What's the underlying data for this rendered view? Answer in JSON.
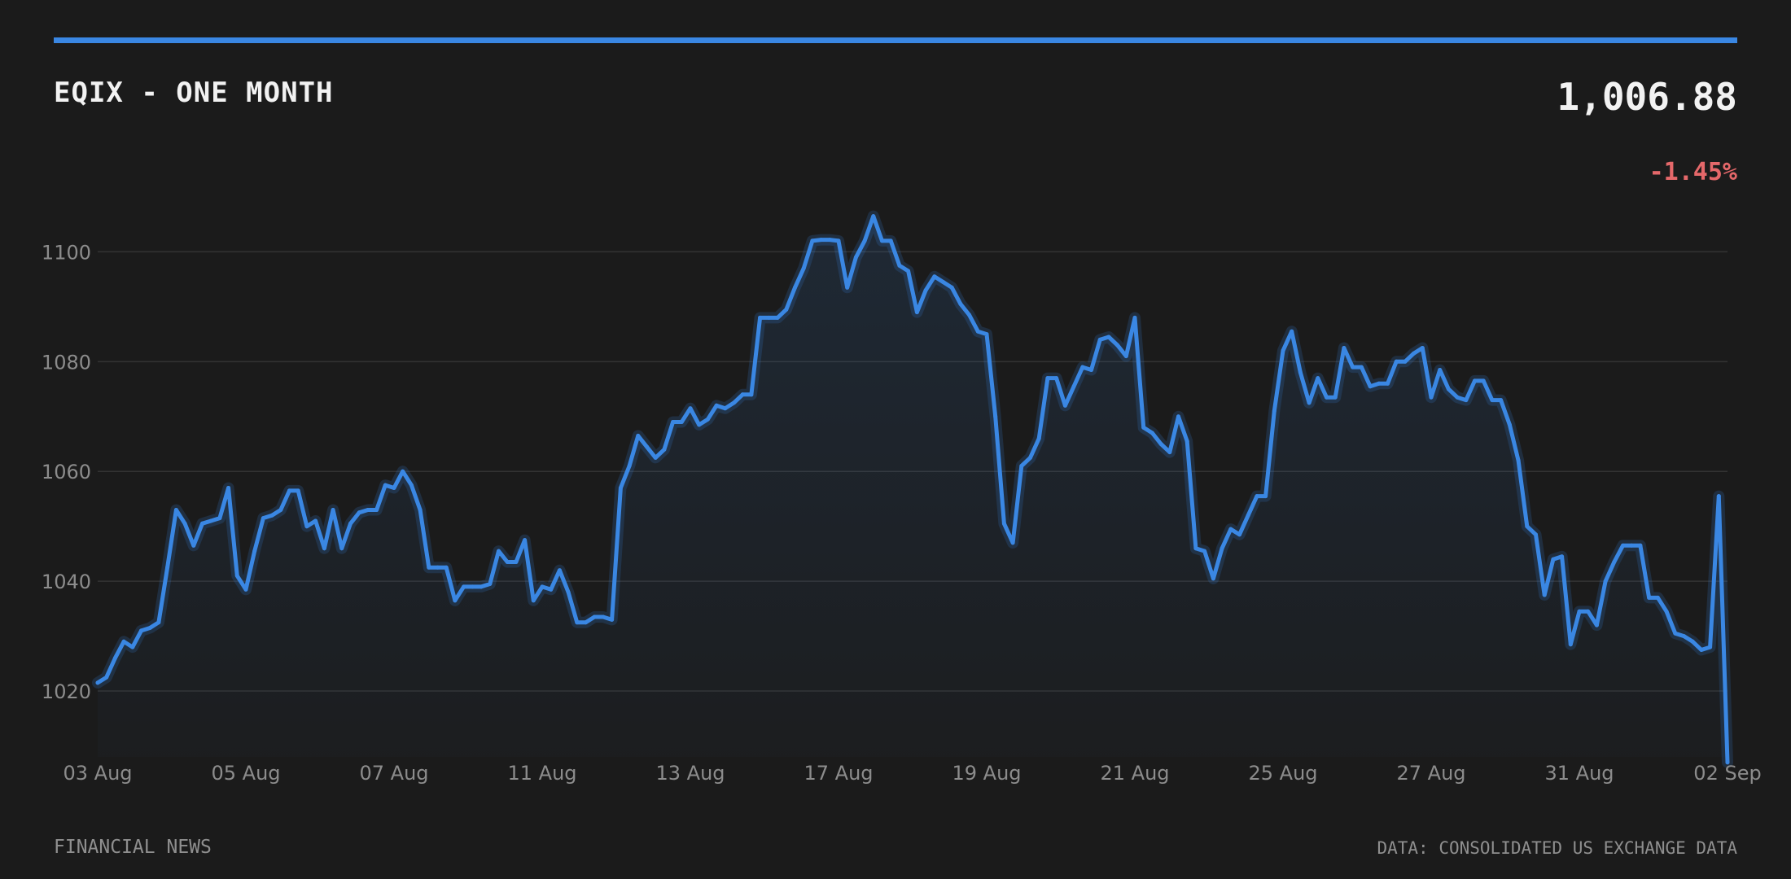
{
  "header": {
    "title": "EQIX - ONE MONTH",
    "price": "1,006.88",
    "change": "-1.45%"
  },
  "footer": {
    "left": "FINANCIAL NEWS",
    "right": "DATA: CONSOLIDATED US EXCHANGE DATA"
  },
  "colors": {
    "background": "#1b1b1b",
    "accent": "#3a87e3",
    "negative": "#e5686a",
    "muted_text": "#8f8f8f"
  },
  "chart_data": {
    "type": "area",
    "title": "EQIX - ONE MONTH",
    "xlabel": "",
    "ylabel": "",
    "ylim": [
      1008,
      1114
    ],
    "yticks": [
      1020,
      1040,
      1060,
      1080,
      1100
    ],
    "grid": true,
    "xtick_labels": [
      "03 Aug",
      "05 Aug",
      "07 Aug",
      "11 Aug",
      "13 Aug",
      "17 Aug",
      "19 Aug",
      "21 Aug",
      "25 Aug",
      "27 Aug",
      "31 Aug",
      "02 Sep"
    ],
    "series": [
      {
        "values": [
          1021.5,
          1022.5,
          1026,
          1029,
          1028,
          1031,
          1031.5,
          1032.5,
          1042.5,
          1053,
          1050.5,
          1046.5,
          1050.5,
          1051,
          1051.5,
          1057,
          1041,
          1038.5,
          1045.5,
          1051.5,
          1052,
          1053,
          1056.5,
          1056.5,
          1050,
          1051,
          1046,
          1053,
          1046,
          1050.5,
          1052.5,
          1053,
          1053,
          1057.5,
          1057,
          1060,
          1057.5,
          1053,
          1042.5,
          1042.5,
          1042.5,
          1036.5,
          1039,
          1039,
          1039,
          1039.5,
          1045.5,
          1043.5,
          1043.5,
          1047.5,
          1036.5,
          1039,
          1038.5,
          1042,
          1038,
          1032.5,
          1032.5,
          1033.5,
          1033.5,
          1033,
          1057,
          1061,
          1066.5,
          1064.5,
          1062.5,
          1064,
          1069,
          1069,
          1071.5,
          1068.5,
          1069.5,
          1072,
          1071.5,
          1072.5,
          1074,
          1074,
          1088,
          1088,
          1088,
          1089.5,
          1093.5,
          1097,
          1102,
          1102.2,
          1102.2,
          1102,
          1093.5,
          1099,
          1102,
          1106.5,
          1102,
          1102,
          1097.5,
          1096.5,
          1089,
          1093,
          1095.5,
          1094.5,
          1093.5,
          1090.5,
          1088.5,
          1085.5,
          1085,
          1070,
          1050.5,
          1047,
          1061,
          1062.5,
          1066,
          1077,
          1077,
          1072,
          1075.5,
          1079,
          1078.5,
          1084,
          1084.5,
          1083,
          1081,
          1088,
          1068,
          1067,
          1065,
          1063.5,
          1070,
          1065.5,
          1046,
          1045.5,
          1040.5,
          1046,
          1049.5,
          1048.5,
          1052,
          1055.5,
          1055.5,
          1071,
          1082,
          1085.5,
          1078,
          1072.5,
          1077,
          1073.5,
          1073.5,
          1082.5,
          1079,
          1079,
          1075.5,
          1076,
          1076,
          1080,
          1080,
          1081.5,
          1082.5,
          1073.5,
          1078.5,
          1075,
          1073.5,
          1073,
          1076.5,
          1076.5,
          1073,
          1073,
          1068.5,
          1062,
          1050,
          1048.5,
          1037.5,
          1044,
          1044.5,
          1028.5,
          1034.5,
          1034.5,
          1032,
          1040,
          1043.5,
          1046.5,
          1046.5,
          1046.5,
          1037,
          1037,
          1034.5,
          1030.5,
          1030,
          1029,
          1027.5,
          1028,
          1055.5,
          1007
        ]
      }
    ]
  }
}
